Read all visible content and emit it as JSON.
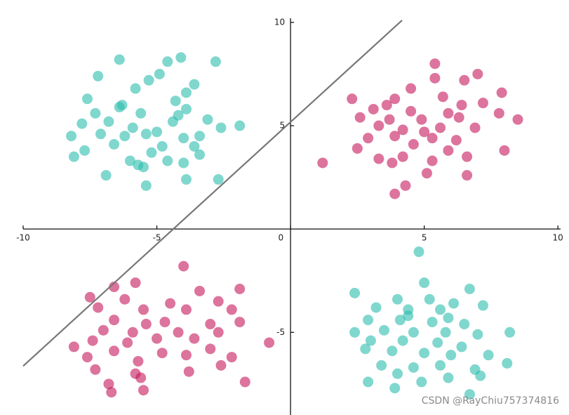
{
  "chart_data": {
    "type": "scatter",
    "xlim": [
      -10,
      10.1
    ],
    "ylim": [
      -9,
      10.2
    ],
    "xticks": [
      -10,
      -5,
      0,
      5,
      10
    ],
    "yticks": [
      -5,
      5,
      10
    ],
    "series": [
      {
        "color": "#2bbcae",
        "x": [
          -6.4,
          -4.6,
          -4.1,
          -2.8,
          -4.9,
          -7.2,
          -5.3,
          -3.6,
          -3.9,
          -5.8,
          -7.6,
          -6.3,
          -4.3,
          -3.9,
          -7.3,
          -5.6,
          -6.8,
          -4.4,
          -3.1,
          -7.8,
          -5.9,
          -5.0,
          -2.6,
          -1.9,
          -8.2,
          -7.1,
          -6.2,
          -5.4,
          -4.0,
          -3.4,
          -6.6,
          -4.8,
          -3.6,
          -7.7,
          -5.2,
          -3.4,
          -8.1,
          -6.0,
          -4.6,
          -5.5,
          -4.0,
          -6.9,
          -3.9,
          -2.7,
          -5.4,
          -5.7,
          -6.4,
          -4.2,
          4.8,
          5.0,
          6.7,
          2.4,
          4.0,
          5.2,
          6.1,
          7.2,
          3.2,
          4.4,
          5.6,
          2.9,
          4.1,
          5.3,
          6.5,
          2.4,
          3.5,
          4.6,
          5.8,
          7.0,
          8.2,
          3.0,
          4.2,
          5.5,
          6.4,
          2.8,
          3.8,
          5.0,
          6.0,
          7.4,
          3.4,
          4.6,
          5.6,
          6.9,
          8.1,
          4.0,
          5.9,
          7.1,
          2.9,
          4.9,
          3.9,
          6.7,
          4.4,
          5.9
        ],
        "y": [
          8.2,
          8.1,
          8.3,
          8.1,
          7.5,
          7.4,
          7.2,
          7.0,
          6.6,
          6.8,
          6.3,
          6.0,
          6.2,
          5.8,
          5.6,
          5.6,
          5.2,
          5.2,
          5.3,
          5.1,
          4.9,
          4.7,
          4.9,
          5.0,
          4.5,
          4.6,
          4.5,
          4.6,
          4.4,
          4.5,
          4.1,
          4.0,
          4.0,
          3.8,
          3.7,
          3.6,
          3.5,
          3.3,
          3.3,
          3.0,
          3.2,
          2.6,
          2.4,
          2.4,
          2.1,
          3.1,
          5.9,
          5.5,
          -1.1,
          -2.6,
          -2.9,
          -3.1,
          -3.4,
          -3.4,
          -3.6,
          -3.7,
          -3.8,
          -3.9,
          -3.9,
          -4.4,
          -4.4,
          -4.5,
          -4.6,
          -5.0,
          -4.9,
          -5.0,
          -5.0,
          -5.1,
          -5.0,
          -5.4,
          -5.4,
          -5.5,
          -5.7,
          -5.8,
          -5.9,
          -6.0,
          -6.1,
          -6.1,
          -6.6,
          -6.7,
          -6.6,
          -6.8,
          -6.5,
          -7.0,
          -7.2,
          -7.1,
          -7.4,
          -7.4,
          -7.7,
          -8.0,
          -4.2,
          -4.3
        ]
      },
      {
        "color": "#c4175c",
        "x": [
          5.4,
          7.0,
          5.4,
          6.5,
          4.5,
          7.9,
          2.3,
          3.9,
          5.7,
          6.4,
          7.2,
          3.1,
          4.5,
          5.9,
          7.8,
          2.6,
          3.7,
          4.9,
          6.3,
          8.5,
          3.3,
          4.2,
          5.6,
          6.9,
          2.9,
          3.9,
          5.3,
          6.2,
          4.6,
          2.5,
          5.9,
          8.0,
          3.3,
          4.2,
          5.3,
          6.6,
          1.2,
          3.8,
          5.1,
          6.6,
          4.3,
          3.9,
          5.0,
          3.6,
          -4.0,
          -5.8,
          -6.6,
          -3.4,
          -1.9,
          -7.5,
          -6.2,
          -4.5,
          -2.7,
          -7.2,
          -5.5,
          -3.9,
          -2.2,
          -6.6,
          -5.4,
          -4.7,
          -3.0,
          -1.9,
          -7.0,
          -5.9,
          -4.2,
          -2.7,
          -7.4,
          -6.1,
          -5.0,
          -3.6,
          -8.1,
          -6.6,
          -4.8,
          -3.0,
          -2.2,
          -7.6,
          -5.7,
          -3.9,
          -0.8,
          -7.3,
          -5.8,
          -3.8,
          -2.6,
          -6.8,
          -5.6,
          -1.7,
          -6.7,
          -5.5
        ],
        "y": [
          8.0,
          7.5,
          7.3,
          7.2,
          6.8,
          6.6,
          6.3,
          6.3,
          6.4,
          6.0,
          6.1,
          5.8,
          5.7,
          5.6,
          5.6,
          5.4,
          5.3,
          5.3,
          5.4,
          5.3,
          5.0,
          4.8,
          4.9,
          4.9,
          4.4,
          4.5,
          4.4,
          4.3,
          4.1,
          3.9,
          3.8,
          3.8,
          3.4,
          3.5,
          3.3,
          3.5,
          3.2,
          3.2,
          2.7,
          2.6,
          2.1,
          1.7,
          4.7,
          6.0,
          -1.8,
          -2.6,
          -2.8,
          -3.0,
          -2.9,
          -3.3,
          -3.4,
          -3.6,
          -3.5,
          -3.8,
          -3.9,
          -3.9,
          -3.9,
          -4.4,
          -4.6,
          -4.5,
          -4.6,
          -4.5,
          -4.9,
          -5.0,
          -5.0,
          -5.0,
          -5.4,
          -5.5,
          -5.3,
          -5.3,
          -5.7,
          -5.9,
          -6.0,
          -5.8,
          -6.2,
          -6.2,
          -6.4,
          -6.1,
          -5.5,
          -6.8,
          -7.0,
          -6.9,
          -6.6,
          -7.5,
          -7.2,
          -7.4,
          -7.9,
          -7.8
        ]
      }
    ],
    "line": {
      "color": "#777777",
      "x": [
        -10,
        4.17
      ],
      "y": [
        -6.63,
        10.1
      ]
    }
  },
  "watermark": "CSDN @RayChiu757374816"
}
